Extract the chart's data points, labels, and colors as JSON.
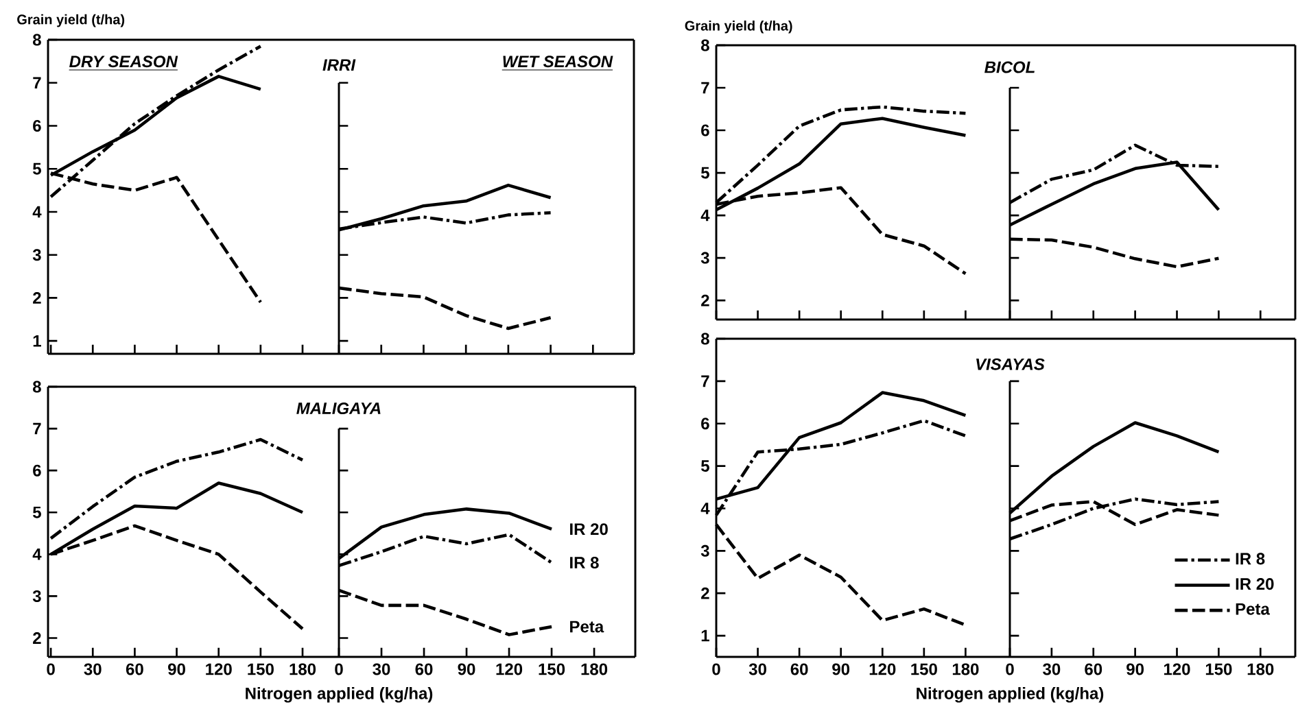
{
  "chart_data": [
    {
      "type": "line",
      "title": "IRRI",
      "ylabel": "Grain yield (t/ha)",
      "annotations": [
        "DRY SEASON"
      ],
      "xlim": [
        -2,
        206
      ],
      "ylim": [
        0.7,
        8
      ],
      "xticks": [
        0,
        30,
        60,
        90,
        120,
        150,
        180
      ],
      "yticks": [
        1,
        2,
        3,
        4,
        5,
        6,
        7,
        8
      ],
      "tick_labels": "y",
      "legend": false,
      "series": [
        {
          "color": "#000000",
          "line_style": "dashdot",
          "x": [
            0,
            30,
            60,
            90,
            120,
            150
          ],
          "values": [
            4.35,
            5.2,
            6.05,
            6.7,
            7.3,
            7.85
          ]
        },
        {
          "color": "#000000",
          "line_style": "solid",
          "x": [
            0,
            30,
            60,
            90,
            120,
            150
          ],
          "values": [
            4.85,
            5.4,
            5.9,
            6.65,
            7.15,
            6.85
          ]
        },
        {
          "color": "#000000",
          "line_style": "dashed",
          "x": [
            0,
            30,
            60,
            90,
            150
          ],
          "values": [
            4.9,
            4.65,
            4.5,
            4.8,
            1.9
          ]
        }
      ]
    },
    {
      "type": "line",
      "annotations": [
        "WET SEASON"
      ],
      "xlim": [
        0,
        209
      ],
      "ylim": [
        0.7,
        8
      ],
      "xticks": [
        0,
        30,
        60,
        90,
        120,
        150,
        180
      ],
      "yticks": [
        1,
        2,
        3,
        4,
        5,
        6,
        7
      ],
      "tick_labels": false,
      "legend": false,
      "series": [
        {
          "color": "#000000",
          "line_style": "dashdot",
          "x": [
            0,
            30,
            60,
            90,
            120,
            150
          ],
          "values": [
            3.6,
            3.75,
            3.88,
            3.74,
            3.93,
            3.98
          ]
        },
        {
          "color": "#000000",
          "line_style": "solid",
          "x": [
            0,
            30,
            60,
            90,
            120,
            150
          ],
          "values": [
            3.58,
            3.84,
            4.14,
            4.25,
            4.62,
            4.33
          ]
        },
        {
          "color": "#000000",
          "line_style": "dashed",
          "x": [
            0,
            30,
            60,
            90,
            120,
            150
          ],
          "values": [
            2.23,
            2.1,
            2.02,
            1.59,
            1.29,
            1.54
          ]
        }
      ]
    },
    {
      "type": "line",
      "title": "BICOL",
      "ylabel": "Grain yield (t/ha)",
      "xlim": [
        0,
        212
      ],
      "ylim": [
        1.55,
        8
      ],
      "xticks": [
        0,
        30,
        60,
        90,
        120,
        150,
        180
      ],
      "yticks": [
        2,
        3,
        4,
        5,
        6,
        7,
        8
      ],
      "tick_labels": "y",
      "legend": false,
      "series": [
        {
          "color": "#000000",
          "line_style": "dashdot",
          "x": [
            0,
            30,
            60,
            90,
            120,
            150,
            180
          ],
          "values": [
            4.3,
            5.18,
            6.1,
            6.48,
            6.55,
            6.45,
            6.4
          ]
        },
        {
          "color": "#000000",
          "line_style": "solid",
          "x": [
            0,
            30,
            60,
            90,
            120,
            150,
            180
          ],
          "values": [
            4.13,
            4.64,
            5.21,
            6.15,
            6.28,
            6.07,
            5.88
          ]
        },
        {
          "color": "#000000",
          "line_style": "dashed",
          "x": [
            0,
            30,
            60,
            90,
            120,
            150,
            180
          ],
          "values": [
            4.26,
            4.45,
            4.53,
            4.65,
            3.55,
            3.28,
            2.63
          ]
        }
      ]
    },
    {
      "type": "line",
      "xlim": [
        0,
        205
      ],
      "ylim": [
        1.55,
        8
      ],
      "xticks": [
        0,
        30,
        60,
        90,
        120,
        150,
        180
      ],
      "yticks": [
        2,
        3,
        4,
        5,
        6,
        7
      ],
      "tick_labels": false,
      "legend": false,
      "series": [
        {
          "color": "#000000",
          "line_style": "dashdot",
          "x": [
            0,
            30,
            60,
            90,
            120,
            150
          ],
          "values": [
            4.3,
            4.85,
            5.07,
            5.65,
            5.18,
            5.15
          ]
        },
        {
          "color": "#000000",
          "line_style": "solid",
          "x": [
            0,
            30,
            60,
            90,
            120,
            150
          ],
          "values": [
            3.77,
            4.26,
            4.74,
            5.1,
            5.25,
            4.13
          ]
        },
        {
          "color": "#000000",
          "line_style": "dashed",
          "x": [
            0,
            30,
            60,
            90,
            120,
            150
          ],
          "values": [
            3.44,
            3.42,
            3.25,
            2.98,
            2.79,
            2.99
          ]
        }
      ]
    },
    {
      "type": "line",
      "title": "MALIGAYA",
      "xlabel": "Nitrogen applied (kg/ha)",
      "xlim": [
        -2,
        206
      ],
      "ylim": [
        1.55,
        8
      ],
      "xticks": [
        0,
        30,
        60,
        90,
        120,
        150,
        180
      ],
      "yticks": [
        2,
        3,
        4,
        5,
        6,
        7,
        8
      ],
      "legend": false,
      "series": [
        {
          "color": "#000000",
          "line_style": "dashdot",
          "x": [
            0,
            30,
            60,
            90,
            120,
            150,
            180
          ],
          "values": [
            4.38,
            5.14,
            5.84,
            6.22,
            6.44,
            6.74,
            6.25
          ]
        },
        {
          "color": "#000000",
          "line_style": "solid",
          "x": [
            0,
            30,
            60,
            90,
            120,
            150,
            180
          ],
          "values": [
            4.0,
            4.6,
            5.15,
            5.1,
            5.7,
            5.45,
            5.0
          ]
        },
        {
          "color": "#000000",
          "line_style": "dashed",
          "x": [
            0,
            30,
            60,
            90,
            120,
            150,
            180
          ],
          "values": [
            4.0,
            4.33,
            4.68,
            4.33,
            4.0,
            3.1,
            2.22
          ]
        }
      ]
    },
    {
      "type": "line",
      "xlim": [
        0,
        209
      ],
      "ylim": [
        1.55,
        8
      ],
      "xticks": [
        0,
        30,
        60,
        90,
        120,
        150,
        180
      ],
      "yticks": [
        2,
        3,
        4,
        5,
        6,
        7
      ],
      "tick_labels": "x",
      "legend": false,
      "series": [
        {
          "name": "IR 8",
          "color": "#000000",
          "line_style": "dashdot",
          "x": [
            0,
            30,
            60,
            90,
            120,
            150
          ],
          "values": [
            3.73,
            4.06,
            4.43,
            4.25,
            4.47,
            3.8
          ]
        },
        {
          "name": "IR 20",
          "color": "#000000",
          "line_style": "solid",
          "x": [
            0,
            30,
            60,
            90,
            120,
            150
          ],
          "values": [
            3.9,
            4.65,
            4.95,
            5.08,
            4.98,
            4.6
          ]
        },
        {
          "name": "Peta",
          "color": "#000000",
          "line_style": "dashed",
          "x": [
            0,
            30,
            60,
            90,
            120,
            150
          ],
          "values": [
            3.14,
            2.78,
            2.78,
            2.45,
            2.08,
            2.27
          ]
        }
      ]
    },
    {
      "type": "line",
      "title": "VISAYAS",
      "xlabel": "Nitrogen applied (kg/ha)",
      "xlim": [
        0,
        212
      ],
      "ylim": [
        0.5,
        8
      ],
      "xticks": [
        0,
        30,
        60,
        90,
        120,
        150,
        180
      ],
      "yticks": [
        1,
        2,
        3,
        4,
        5,
        6,
        7,
        8
      ],
      "legend": false,
      "series": [
        {
          "color": "#000000",
          "line_style": "dashdot",
          "x": [
            0,
            30,
            60,
            90,
            120,
            150,
            180
          ],
          "values": [
            3.84,
            5.33,
            5.4,
            5.51,
            5.78,
            6.07,
            5.71
          ]
        },
        {
          "color": "#000000",
          "line_style": "solid",
          "x": [
            0,
            30,
            60,
            90,
            120,
            150,
            180
          ],
          "values": [
            4.22,
            4.49,
            5.67,
            6.02,
            6.73,
            6.54,
            6.19
          ]
        },
        {
          "color": "#000000",
          "line_style": "dashed",
          "x": [
            0,
            30,
            60,
            90,
            120,
            150,
            180
          ],
          "values": [
            3.62,
            2.35,
            2.9,
            2.38,
            1.36,
            1.63,
            1.25
          ]
        }
      ]
    },
    {
      "type": "line",
      "xlim": [
        0,
        205
      ],
      "ylim": [
        0.5,
        8
      ],
      "xticks": [
        0,
        30,
        60,
        90,
        120,
        150,
        180
      ],
      "yticks": [
        1,
        2,
        3,
        4,
        5,
        6,
        7
      ],
      "tick_labels": "x",
      "legend": "bottom right",
      "series": [
        {
          "name": "IR 8",
          "color": "#000000",
          "line_style": "dashdot",
          "x": [
            0,
            30,
            60,
            90,
            120,
            150
          ],
          "values": [
            3.28,
            3.62,
            4.0,
            4.22,
            4.09,
            4.16
          ]
        },
        {
          "name": "IR 20",
          "color": "#000000",
          "line_style": "solid",
          "x": [
            0,
            30,
            60,
            90,
            120,
            150
          ],
          "values": [
            3.89,
            4.76,
            5.46,
            6.02,
            5.71,
            5.33
          ]
        },
        {
          "name": "Peta",
          "color": "#000000",
          "line_style": "dashed",
          "x": [
            0,
            30,
            60,
            90,
            120,
            150
          ],
          "values": [
            3.71,
            4.08,
            4.16,
            3.62,
            3.97,
            3.84
          ]
        }
      ]
    }
  ]
}
